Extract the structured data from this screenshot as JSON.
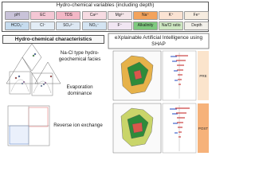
{
  "header": {
    "title": "Hydro-chemical variables (including depth)"
  },
  "variables": [
    {
      "label": "pH",
      "color": "#c9c3d9"
    },
    {
      "label": "EC",
      "color": "#f4c7d4"
    },
    {
      "label": "TDS",
      "color": "#f3b7c6"
    },
    {
      "label": "Ca²⁺",
      "color": "#f6dbe2"
    },
    {
      "label": "Mg²⁺",
      "color": "#f4e6e9"
    },
    {
      "label": "Na⁺",
      "color": "#f3a35c"
    },
    {
      "label": "K⁺",
      "color": "#fbe3d3"
    },
    {
      "label": "Fe⁺",
      "color": "#f6ece0"
    },
    {
      "label": "HCO₃⁻",
      "color": "#c6dcef"
    },
    {
      "label": "Cl⁻",
      "color": "#e3edf6"
    },
    {
      "label": "SO₄²⁻",
      "color": "#dde8f3"
    },
    {
      "label": "NO₃⁻",
      "color": "#d4e4f2"
    },
    {
      "label": "F⁻",
      "color": "#f1e6f3"
    },
    {
      "label": "Alkalinity",
      "color": "#7fc97f"
    },
    {
      "label": "Na/Cl ratio",
      "color": "#cfe8c3"
    },
    {
      "label": "Depth",
      "color": "#f2f0ea"
    }
  ],
  "left": {
    "title": "Hydro-chemical characteristics",
    "findings": [
      "Na-Cl type hydro-geochemical facies",
      "Evaporation dominance",
      "Reverse ion exchange"
    ]
  },
  "right": {
    "title": "eXplainable Artificial Intelligence using SHAP",
    "periods": [
      "PRE",
      "POST"
    ]
  }
}
